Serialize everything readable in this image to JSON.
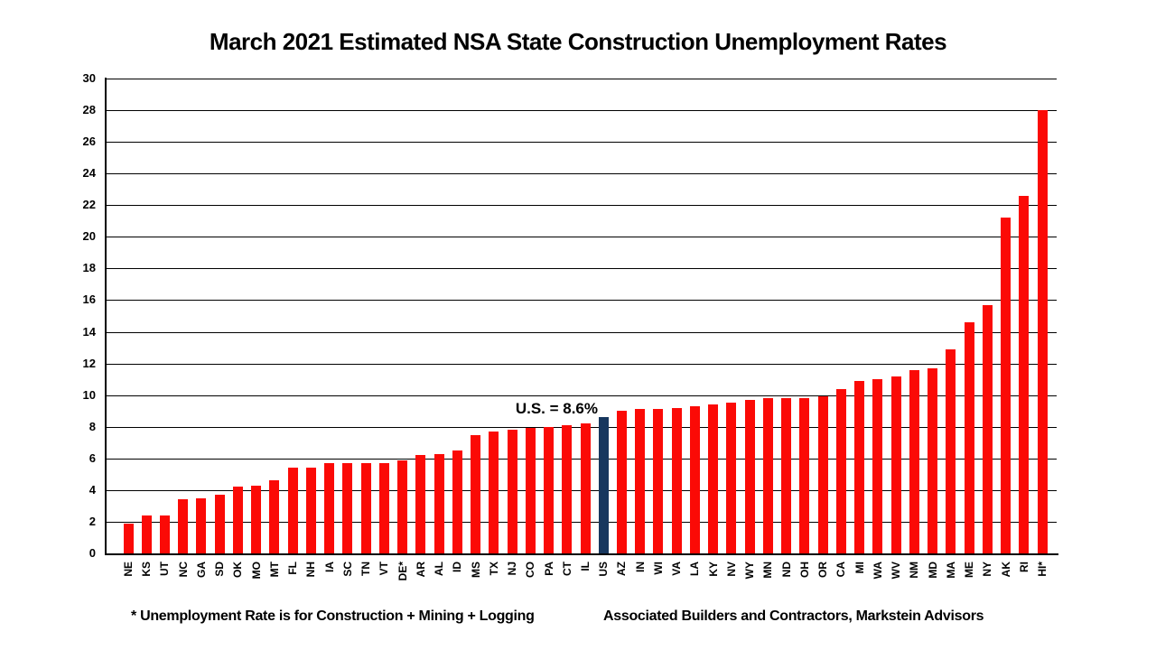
{
  "title": "March 2021 Estimated NSA State Construction Unemployment Rates",
  "annotation": "U.S. = 8.6%",
  "footnote_left": "* Unemployment Rate is for Construction + Mining + Logging",
  "footnote_right": "Associated Builders and Contractors, Markstein Advisors",
  "colors": {
    "bar": "#fb0a06",
    "us_bar": "#17375e",
    "axis": "#000000",
    "background": "#ffffff"
  },
  "chart_data": {
    "type": "bar",
    "title": "March 2021 Estimated NSA State Construction Unemployment Rates",
    "xlabel": "",
    "ylabel": "",
    "ylim": [
      0,
      30
    ],
    "ytick_interval": 2,
    "yticks": [
      0,
      2,
      4,
      6,
      8,
      10,
      12,
      14,
      16,
      18,
      20,
      22,
      24,
      26,
      28,
      30
    ],
    "grid": true,
    "legend": "none",
    "sorted": "ascending",
    "highlight_category": "US",
    "highlight_annotation": "U.S. = 8.6%",
    "categories": [
      "NE",
      "KS",
      "UT",
      "NC",
      "GA",
      "SD",
      "OK",
      "MO",
      "MT",
      "FL",
      "NH",
      "IA",
      "SC",
      "TN",
      "VT",
      "DE*",
      "AR",
      "AL",
      "ID",
      "MS",
      "TX",
      "NJ",
      "CO",
      "PA",
      "CT",
      "IL",
      "US",
      "AZ",
      "IN",
      "WI",
      "VA",
      "LA",
      "KY",
      "NV",
      "WY",
      "MN",
      "ND",
      "OH",
      "OR",
      "CA",
      "MI",
      "WA",
      "WV",
      "NM",
      "MD",
      "MA",
      "ME",
      "NY",
      "AK",
      "RI",
      "HI*"
    ],
    "values": [
      1.9,
      2.4,
      2.4,
      3.4,
      3.5,
      3.7,
      4.2,
      4.3,
      4.6,
      5.4,
      5.4,
      5.7,
      5.7,
      5.7,
      5.7,
      5.9,
      6.2,
      6.3,
      6.5,
      7.5,
      7.7,
      7.8,
      7.9,
      8.0,
      8.1,
      8.2,
      8.6,
      9.0,
      9.1,
      9.1,
      9.2,
      9.3,
      9.4,
      9.5,
      9.7,
      9.8,
      9.8,
      9.8,
      9.9,
      10.4,
      10.9,
      11.0,
      11.2,
      11.6,
      11.7,
      12.9,
      14.6,
      15.7,
      21.2,
      22.6,
      28.0
    ]
  }
}
